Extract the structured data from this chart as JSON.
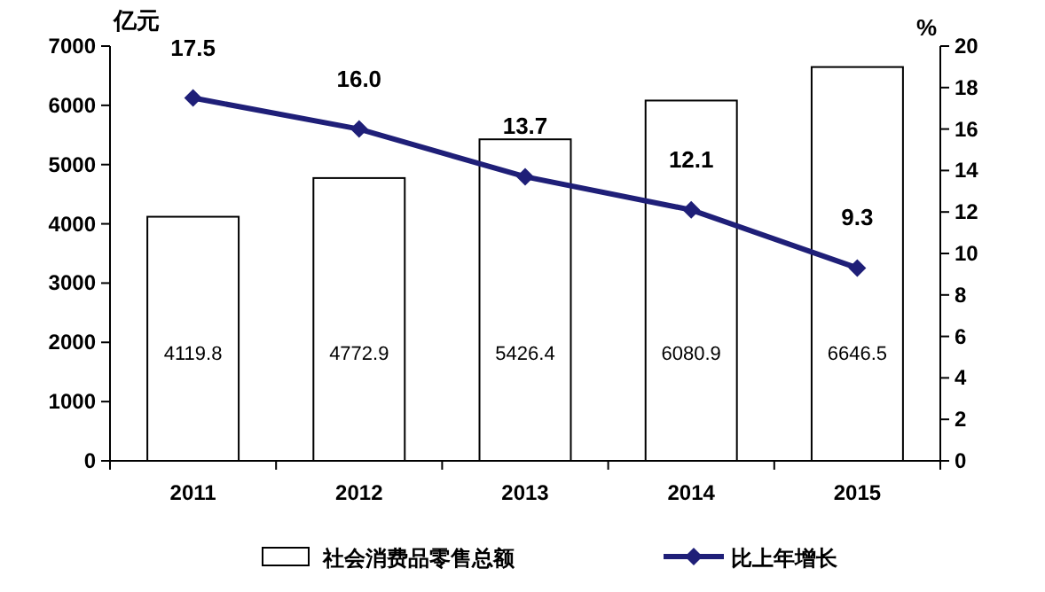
{
  "chart_data": {
    "type": "bar",
    "ylabel": "亿元",
    "y2label": "%",
    "categories": [
      "2011",
      "2012",
      "2013",
      "2014",
      "2015"
    ],
    "series": [
      {
        "name": "社会消费品零售总额",
        "type": "bar",
        "color": "#ffffff",
        "values": [
          4119.8,
          4772.9,
          5426.4,
          6080.9,
          6646.5
        ],
        "value_labels": [
          "4119.8",
          "4772.9",
          "5426.4",
          "6080.9",
          "6646.5"
        ]
      },
      {
        "name": "比上年增长",
        "type": "line",
        "axis": "y2",
        "color": "#1f1f78",
        "values": [
          17.5,
          16.0,
          13.7,
          12.1,
          9.3
        ],
        "value_labels": [
          "17.5",
          "16.0",
          "13.7",
          "12.1",
          "9.3"
        ]
      }
    ],
    "ylim": [
      0,
      7000
    ],
    "yticks": [
      0,
      1000,
      2000,
      3000,
      4000,
      5000,
      6000,
      7000
    ],
    "y2lim": [
      0,
      20
    ],
    "y2ticks": [
      0,
      2,
      4,
      6,
      8,
      10,
      12,
      14,
      16,
      18,
      20
    ],
    "marker": "diamond",
    "legend": "bottom",
    "grid": false
  }
}
